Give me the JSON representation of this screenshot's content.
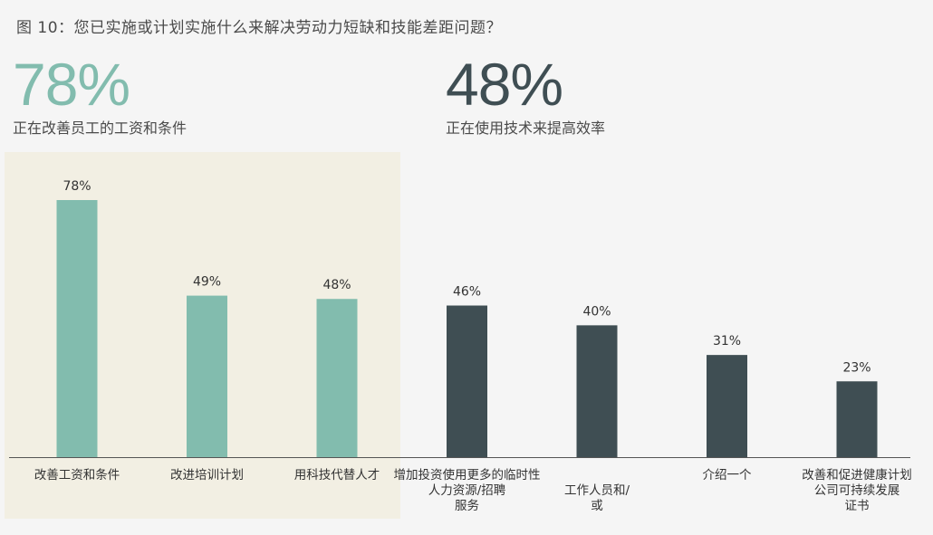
{
  "title": "图 10：您已实施或计划实施什么来解决劳动力短缺和技能差距问题？",
  "kpis": [
    {
      "value": "78%",
      "label": "正在改善员工的工资和条件"
    },
    {
      "value": "48%",
      "label": "正在使用技术来提高效率"
    }
  ],
  "colors": {
    "accent": "#82bcae",
    "dark": "#3f4e53",
    "highlight": "#f2efe3"
  },
  "chart_data": {
    "type": "bar",
    "categories": [
      [
        "改善工资和条件"
      ],
      [
        "改进培训计划"
      ],
      [
        "用科技代替人才"
      ],
      [
        "增加投资使用更多的临时性",
        "人力资源/招聘",
        "服务"
      ],
      [
        "工作人员和/",
        "或"
      ],
      [
        "介绍一个"
      ],
      [
        "改善和促进健康计划",
        "公司可持续发展",
        "证书"
      ]
    ],
    "values": [
      78,
      49,
      48,
      46,
      40,
      31,
      23
    ],
    "value_labels": [
      "78%",
      "49%",
      "48%",
      "46%",
      "40%",
      "31%",
      "23%"
    ],
    "bar_colors": [
      "#82bcae",
      "#82bcae",
      "#82bcae",
      "#3f4e53",
      "#3f4e53",
      "#3f4e53",
      "#3f4e53"
    ],
    "ylim": [
      0,
      100
    ],
    "xlabel": "",
    "ylabel": "",
    "grid": false
  }
}
